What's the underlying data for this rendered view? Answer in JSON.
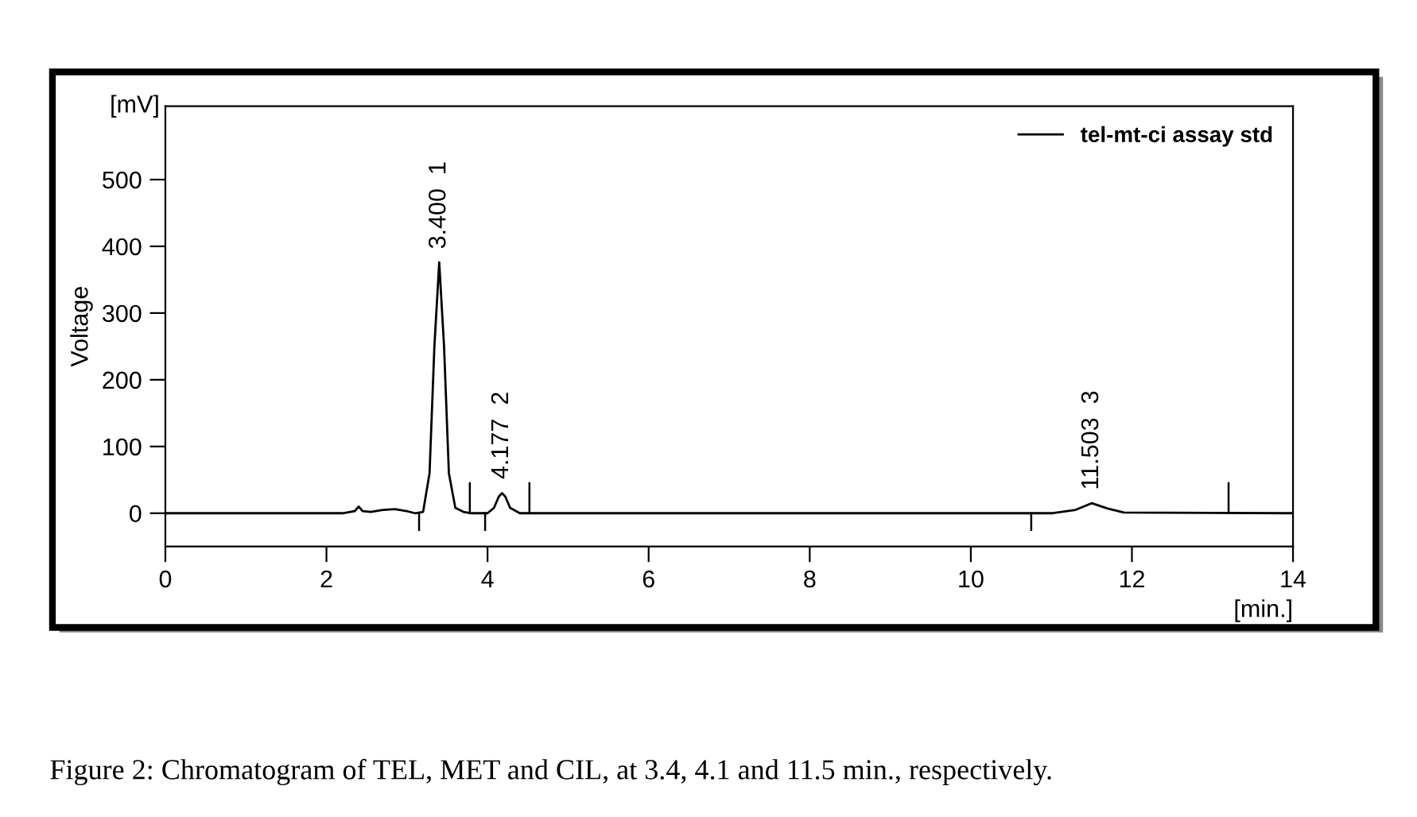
{
  "chart_data": {
    "type": "line",
    "ylabel": "Voltage",
    "series": [
      {
        "name": "tel-mt-ci assay std",
        "color": "#000000",
        "x": [
          0,
          2.2,
          2.35,
          2.4,
          2.45,
          2.55,
          2.7,
          2.85,
          3.0,
          3.1,
          3.2,
          3.28,
          3.34,
          3.4,
          3.46,
          3.52,
          3.6,
          3.7,
          3.8,
          4.0,
          4.08,
          4.14,
          4.18,
          4.22,
          4.28,
          4.4,
          11.0,
          11.3,
          11.5,
          11.7,
          11.9,
          14
        ],
        "values": [
          0,
          0,
          3,
          10,
          3,
          2,
          5,
          6,
          3,
          0,
          2,
          60,
          250,
          376,
          250,
          60,
          8,
          2,
          0,
          0,
          8,
          25,
          30,
          25,
          8,
          0,
          0,
          5,
          15,
          7,
          1,
          0
        ]
      },
      {
        "color": "#000000",
        "x": [
          3.15,
          3.15
        ],
        "values": [
          -25,
          0
        ]
      },
      {
        "color": "#000000",
        "x": [
          3.78,
          3.78
        ],
        "values": [
          0,
          45
        ]
      },
      {
        "color": "#000000",
        "x": [
          3.97,
          3.97
        ],
        "values": [
          -25,
          0
        ]
      },
      {
        "color": "#000000",
        "x": [
          4.52,
          4.52
        ],
        "values": [
          0,
          45
        ]
      },
      {
        "color": "#000000",
        "x": [
          10.75,
          10.75
        ],
        "values": [
          -25,
          0
        ]
      },
      {
        "color": "#000000",
        "x": [
          13.2,
          13.2
        ],
        "values": [
          0,
          45
        ]
      }
    ],
    "xlim": [
      0,
      14
    ],
    "ylim": [
      -50,
      610
    ],
    "xticks": [
      0,
      2,
      4,
      6,
      8,
      10,
      12,
      14
    ],
    "yticks": [
      0,
      100,
      200,
      300,
      400,
      500
    ],
    "grid": false,
    "legend": "top right",
    "marker": "none",
    "line_style": "solid",
    "annotations": [
      {
        "text": "3.400  1",
        "x": 3.4,
        "y": 376
      },
      {
        "text": "4.177  2",
        "x": 4.177,
        "y": 31
      },
      {
        "text": "11.503  3",
        "x": 11.503,
        "y": 15
      },
      "[mV]",
      "[min.]",
      "Figure 2: Chromatogram of TEL, MET and CIL, at 3.4, 4.1 and 11.5 min., respectively."
    ]
  }
}
